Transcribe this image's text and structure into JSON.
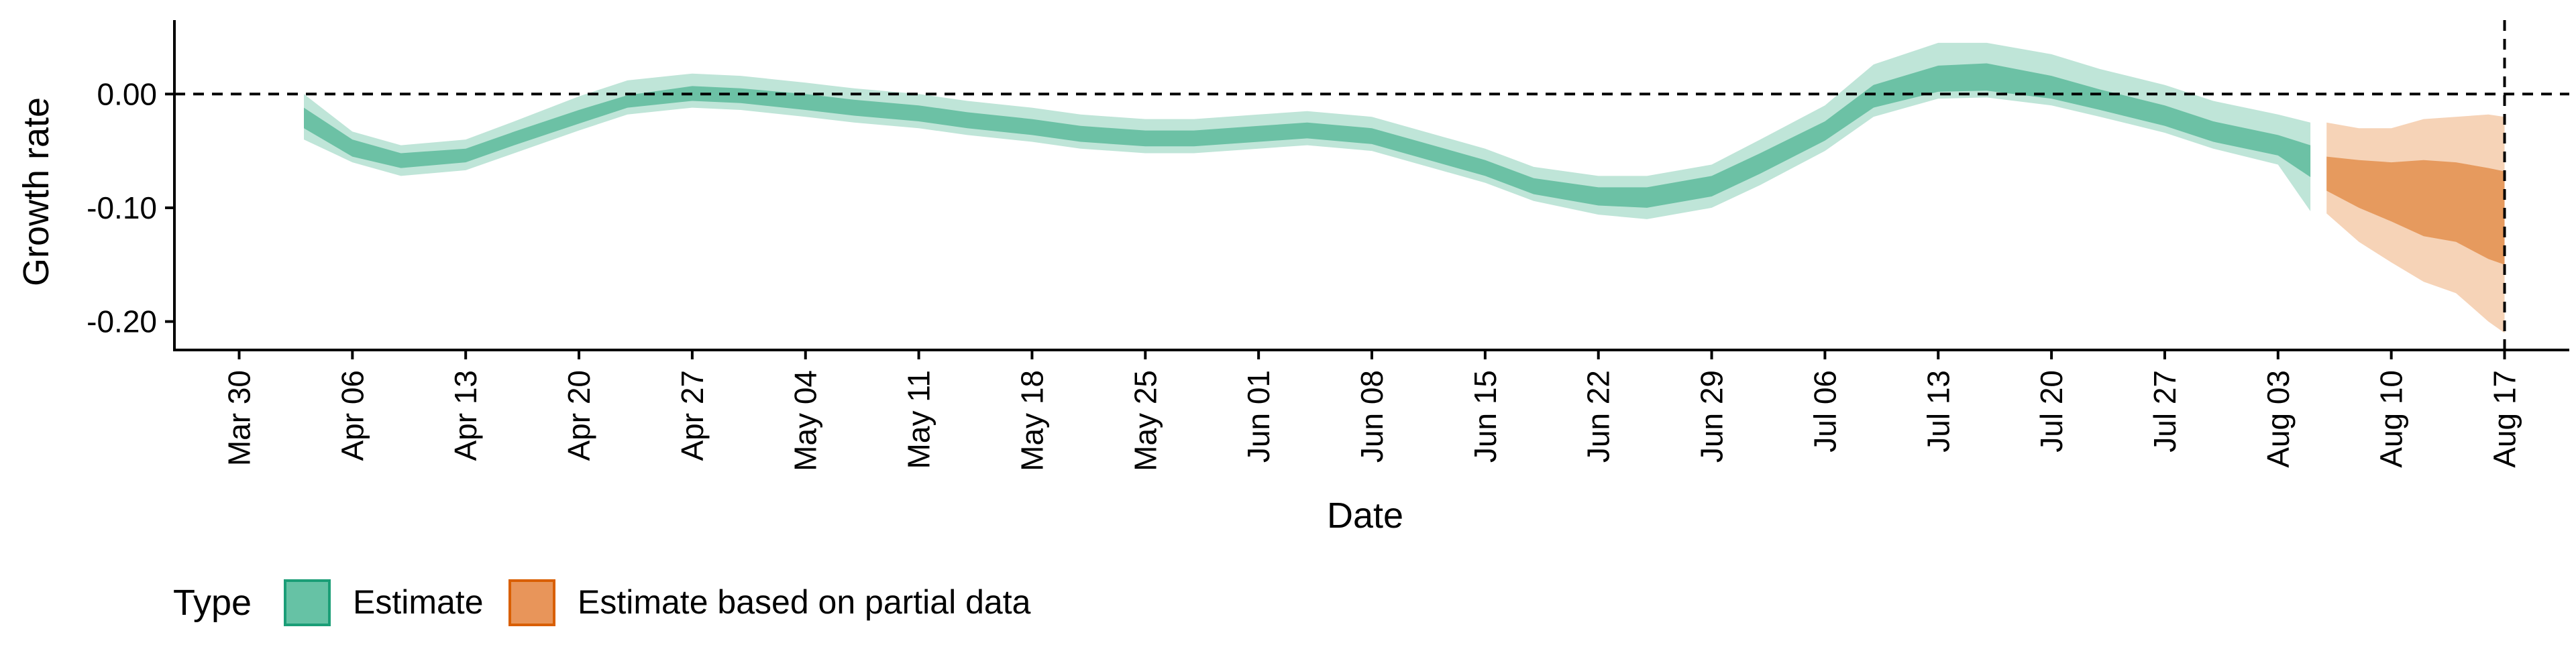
{
  "chart_data": {
    "type": "area",
    "title": "",
    "xlabel": "Date",
    "ylabel": "Growth rate",
    "x_axis": {
      "min": "2020-03-26",
      "max": "2020-08-21",
      "ticks": [
        "2020-03-30",
        "2020-04-06",
        "2020-04-13",
        "2020-04-20",
        "2020-04-27",
        "2020-05-04",
        "2020-05-11",
        "2020-05-18",
        "2020-05-25",
        "2020-06-01",
        "2020-06-08",
        "2020-06-15",
        "2020-06-22",
        "2020-06-29",
        "2020-07-06",
        "2020-07-13",
        "2020-07-20",
        "2020-07-27",
        "2020-08-03",
        "2020-08-10",
        "2020-08-17"
      ],
      "tick_labels": [
        "Mar 30",
        "Apr 06",
        "Apr 13",
        "Apr 20",
        "Apr 27",
        "May 04",
        "May 11",
        "May 18",
        "May 25",
        "Jun 01",
        "Jun 08",
        "Jun 15",
        "Jun 22",
        "Jun 29",
        "Jul 06",
        "Jul 13",
        "Jul 20",
        "Jul 27",
        "Aug 03",
        "Aug 10",
        "Aug 17"
      ]
    },
    "y_axis": {
      "min": -0.225,
      "max": 0.065,
      "ticks": [
        0.0,
        -0.1,
        -0.2
      ],
      "tick_labels": [
        "0.00",
        "-0.10",
        "-0.20"
      ]
    },
    "reference_lines": [
      {
        "orientation": "horizontal",
        "value": 0.0,
        "style": "dashed"
      },
      {
        "orientation": "vertical",
        "value": "2020-08-17",
        "style": "dashed"
      }
    ],
    "grid": false,
    "legend": {
      "position": "bottom-left",
      "title": "Type",
      "entries": [
        {
          "label": "Estimate",
          "color": "#66c2a5"
        },
        {
          "label": "Estimate based on partial data",
          "color": "#e8955a"
        }
      ]
    },
    "series": [
      {
        "name": "Estimate",
        "color_inner": "#6cc1a5",
        "color_outer": "#bfe5d8",
        "x": [
          "2020-04-03",
          "2020-04-06",
          "2020-04-09",
          "2020-04-13",
          "2020-04-16",
          "2020-04-20",
          "2020-04-23",
          "2020-04-27",
          "2020-04-30",
          "2020-05-04",
          "2020-05-07",
          "2020-05-11",
          "2020-05-14",
          "2020-05-18",
          "2020-05-21",
          "2020-05-25",
          "2020-05-28",
          "2020-06-01",
          "2020-06-04",
          "2020-06-08",
          "2020-06-11",
          "2020-06-15",
          "2020-06-18",
          "2020-06-22",
          "2020-06-25",
          "2020-06-29",
          "2020-07-02",
          "2020-07-06",
          "2020-07-09",
          "2020-07-13",
          "2020-07-16",
          "2020-07-20",
          "2020-07-23",
          "2020-07-27",
          "2020-07-30",
          "2020-08-03",
          "2020-08-05"
        ],
        "lower_outer": [
          -0.04,
          -0.06,
          -0.072,
          -0.067,
          -0.052,
          -0.032,
          -0.018,
          -0.012,
          -0.014,
          -0.02,
          -0.025,
          -0.03,
          -0.036,
          -0.042,
          -0.048,
          -0.052,
          -0.052,
          -0.048,
          -0.045,
          -0.05,
          -0.062,
          -0.078,
          -0.094,
          -0.106,
          -0.11,
          -0.1,
          -0.08,
          -0.05,
          -0.02,
          -0.004,
          -0.003,
          -0.01,
          -0.02,
          -0.034,
          -0.048,
          -0.062,
          -0.103
        ],
        "lower_inner": [
          -0.03,
          -0.055,
          -0.065,
          -0.06,
          -0.045,
          -0.026,
          -0.012,
          -0.006,
          -0.008,
          -0.014,
          -0.019,
          -0.024,
          -0.03,
          -0.036,
          -0.042,
          -0.046,
          -0.046,
          -0.042,
          -0.039,
          -0.044,
          -0.056,
          -0.072,
          -0.088,
          -0.098,
          -0.1,
          -0.09,
          -0.07,
          -0.041,
          -0.012,
          0.002,
          0.003,
          -0.004,
          -0.014,
          -0.028,
          -0.042,
          -0.054,
          -0.073
        ],
        "upper_inner": [
          -0.012,
          -0.04,
          -0.052,
          -0.048,
          -0.033,
          -0.014,
          -0.001,
          0.007,
          0.005,
          0.0,
          -0.005,
          -0.01,
          -0.016,
          -0.022,
          -0.028,
          -0.032,
          -0.032,
          -0.028,
          -0.025,
          -0.03,
          -0.042,
          -0.058,
          -0.074,
          -0.082,
          -0.082,
          -0.072,
          -0.052,
          -0.024,
          0.008,
          0.025,
          0.027,
          0.016,
          0.004,
          -0.01,
          -0.024,
          -0.036,
          -0.045
        ],
        "upper_outer": [
          0.0,
          -0.033,
          -0.045,
          -0.04,
          -0.024,
          -0.002,
          0.012,
          0.018,
          0.016,
          0.01,
          0.005,
          0.0,
          -0.006,
          -0.012,
          -0.018,
          -0.022,
          -0.022,
          -0.018,
          -0.015,
          -0.02,
          -0.032,
          -0.048,
          -0.064,
          -0.072,
          -0.072,
          -0.062,
          -0.04,
          -0.01,
          0.026,
          0.045,
          0.045,
          0.035,
          0.022,
          0.008,
          -0.006,
          -0.018,
          -0.025
        ]
      },
      {
        "name": "Estimate based on partial data",
        "color_inner": "#e69a5e",
        "color_outer": "#f6d3b7",
        "x": [
          "2020-08-06",
          "2020-08-08",
          "2020-08-10",
          "2020-08-12",
          "2020-08-14",
          "2020-08-16",
          "2020-08-17"
        ],
        "lower_outer": [
          -0.105,
          -0.13,
          -0.148,
          -0.165,
          -0.175,
          -0.2,
          -0.21
        ],
        "lower_inner": [
          -0.085,
          -0.1,
          -0.112,
          -0.125,
          -0.13,
          -0.145,
          -0.15
        ],
        "upper_inner": [
          -0.055,
          -0.058,
          -0.06,
          -0.058,
          -0.06,
          -0.065,
          -0.068
        ],
        "upper_outer": [
          -0.025,
          -0.03,
          -0.03,
          -0.022,
          -0.02,
          -0.018,
          -0.02
        ]
      }
    ]
  }
}
